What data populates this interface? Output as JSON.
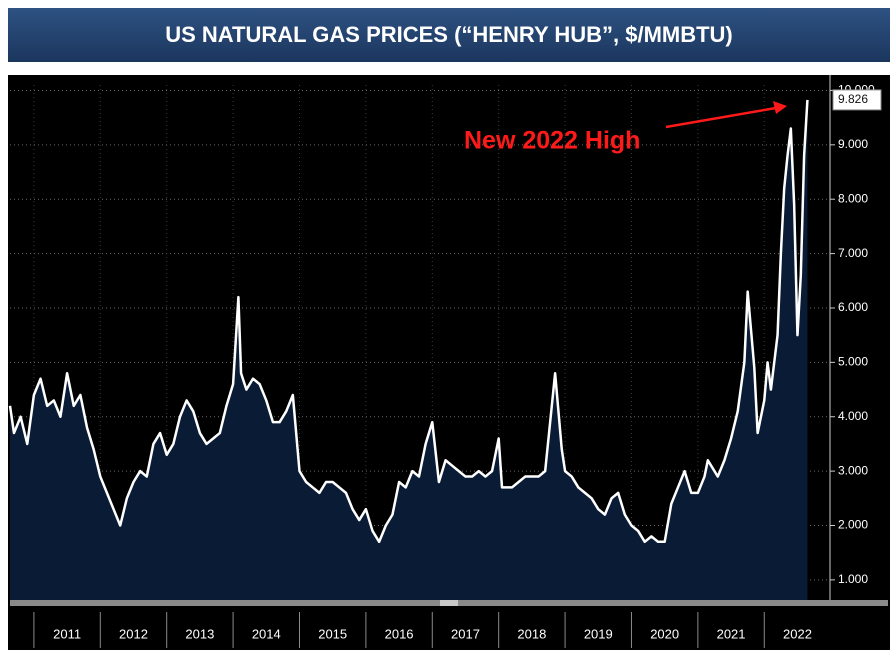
{
  "chart_data": {
    "type": "area",
    "title": "US NATURAL GAS PRICES (“HENRY HUB”, $/MMBTU)",
    "annotation": "New 2022 High",
    "color": "#ffffff",
    "fill": "#0a1b36",
    "grid": true,
    "xlim": [
      2010.64,
      2022.99
    ],
    "xticks": [
      {
        "value": 2011.5,
        "label": "2011"
      },
      {
        "value": 2012.5,
        "label": "2012"
      },
      {
        "value": 2013.5,
        "label": "2013"
      },
      {
        "value": 2014.5,
        "label": "2014"
      },
      {
        "value": 2015.5,
        "label": "2015"
      },
      {
        "value": 2016.5,
        "label": "2016"
      },
      {
        "value": 2017.5,
        "label": "2017"
      },
      {
        "value": 2018.5,
        "label": "2018"
      },
      {
        "value": 2019.5,
        "label": "2019"
      },
      {
        "value": 2020.5,
        "label": "2020"
      },
      {
        "value": 2021.5,
        "label": "2021"
      },
      {
        "value": 2022.5,
        "label": "2022"
      }
    ],
    "ylim": [
      0.63,
      10.1
    ],
    "yticks": [
      {
        "value": 1,
        "label": "1.000"
      },
      {
        "value": 2,
        "label": "2.000"
      },
      {
        "value": 3,
        "label": "3.000"
      },
      {
        "value": 4,
        "label": "4.000"
      },
      {
        "value": 5,
        "label": "5.000"
      },
      {
        "value": 6,
        "label": "6.000"
      },
      {
        "value": 7,
        "label": "7.000"
      },
      {
        "value": 8,
        "label": "8.000"
      },
      {
        "value": 9,
        "label": "9.000"
      },
      {
        "value": 10,
        "label": "10.000"
      }
    ],
    "x": [
      2010.64,
      2010.7,
      2010.8,
      2010.9,
      2011.0,
      2011.1,
      2011.2,
      2011.3,
      2011.4,
      2011.5,
      2011.6,
      2011.7,
      2011.8,
      2011.9,
      2012.0,
      2012.1,
      2012.2,
      2012.3,
      2012.4,
      2012.5,
      2012.6,
      2012.7,
      2012.8,
      2012.9,
      2013.0,
      2013.1,
      2013.2,
      2013.3,
      2013.4,
      2013.5,
      2013.6,
      2013.7,
      2013.8,
      2013.9,
      2014.0,
      2014.08,
      2014.12,
      2014.2,
      2014.3,
      2014.4,
      2014.5,
      2014.6,
      2014.7,
      2014.8,
      2014.9,
      2015.0,
      2015.1,
      2015.2,
      2015.3,
      2015.4,
      2015.5,
      2015.6,
      2015.7,
      2015.8,
      2015.9,
      2016.0,
      2016.1,
      2016.2,
      2016.3,
      2016.4,
      2016.5,
      2016.6,
      2016.7,
      2016.8,
      2016.9,
      2017.0,
      2017.1,
      2017.2,
      2017.3,
      2017.4,
      2017.5,
      2017.6,
      2017.7,
      2017.8,
      2017.9,
      2018.0,
      2018.05,
      2018.2,
      2018.3,
      2018.4,
      2018.5,
      2018.6,
      2018.7,
      2018.85,
      2018.95,
      2019.0,
      2019.1,
      2019.2,
      2019.3,
      2019.4,
      2019.5,
      2019.6,
      2019.7,
      2019.8,
      2019.9,
      2020.0,
      2020.1,
      2020.2,
      2020.3,
      2020.4,
      2020.5,
      2020.6,
      2020.7,
      2020.8,
      2020.9,
      2021.0,
      2021.1,
      2021.15,
      2021.3,
      2021.4,
      2021.5,
      2021.6,
      2021.7,
      2021.75,
      2021.85,
      2021.9,
      2022.0,
      2022.05,
      2022.1,
      2022.2,
      2022.25,
      2022.3,
      2022.35,
      2022.4,
      2022.45,
      2022.5,
      2022.55,
      2022.6,
      2022.65
    ],
    "values": [
      4.2,
      3.7,
      4.0,
      3.5,
      4.4,
      4.7,
      4.2,
      4.3,
      4.0,
      4.8,
      4.2,
      4.4,
      3.8,
      3.4,
      2.9,
      2.6,
      2.3,
      2.0,
      2.5,
      2.8,
      3.0,
      2.9,
      3.5,
      3.7,
      3.3,
      3.5,
      4.0,
      4.3,
      4.1,
      3.7,
      3.5,
      3.6,
      3.7,
      4.2,
      4.6,
      6.2,
      4.8,
      4.5,
      4.7,
      4.6,
      4.3,
      3.9,
      3.9,
      4.1,
      4.4,
      3.0,
      2.8,
      2.7,
      2.6,
      2.8,
      2.8,
      2.7,
      2.6,
      2.3,
      2.1,
      2.3,
      1.9,
      1.7,
      2.0,
      2.2,
      2.8,
      2.7,
      3.0,
      2.9,
      3.5,
      3.9,
      2.8,
      3.2,
      3.1,
      3.0,
      2.9,
      2.9,
      3.0,
      2.9,
      3.0,
      3.6,
      2.7,
      2.7,
      2.8,
      2.9,
      2.9,
      2.9,
      3.0,
      4.8,
      3.4,
      3.0,
      2.9,
      2.7,
      2.6,
      2.5,
      2.3,
      2.2,
      2.5,
      2.6,
      2.2,
      2.0,
      1.9,
      1.7,
      1.8,
      1.7,
      1.7,
      2.4,
      2.7,
      3.0,
      2.6,
      2.6,
      2.9,
      3.2,
      2.9,
      3.2,
      3.6,
      4.1,
      5.0,
      6.3,
      4.9,
      3.7,
      4.3,
      5.0,
      4.5,
      5.5,
      7.0,
      8.2,
      8.8,
      9.3,
      7.9,
      5.5,
      6.6,
      8.8,
      9.826
    ]
  }
}
